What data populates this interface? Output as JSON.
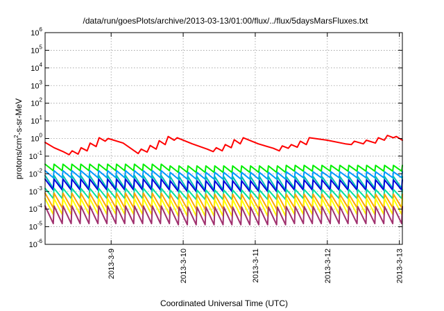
{
  "chart_data": {
    "type": "line",
    "title": "/data/run/goesPlots/archive/2013-03-13/01:00/flux/../flux/5daysMarsFluxes.txt",
    "xlabel": "Coordinated Universal Time (UTC)",
    "ylabel": {
      "base": "protons/cm",
      "sup": "2",
      "rest": "-s-sr-MeV"
    },
    "xlim": [
      "2013-03-08T02:00",
      "2013-03-13T01:00"
    ],
    "x_ticks": [
      "2013-3-9",
      "2013-3-10",
      "2013-3-11",
      "2013-3-12",
      "2013-3-13"
    ],
    "x_tick_dates": [
      "2013-03-09",
      "2013-03-10",
      "2013-03-11",
      "2013-03-12",
      "2013-03-13"
    ],
    "yscale": "log",
    "ylim": [
      1e-06,
      1000000.0
    ],
    "y_ticks": [
      {
        "base": "10",
        "exp": "-6"
      },
      {
        "base": "10",
        "exp": "-5"
      },
      {
        "base": "10",
        "exp": "-4"
      },
      {
        "base": "10",
        "exp": "-3"
      },
      {
        "base": "10",
        "exp": "-2"
      },
      {
        "base": "10",
        "exp": "-1"
      },
      {
        "base": "10",
        "exp": "0"
      },
      {
        "base": "10",
        "exp": "1"
      },
      {
        "base": "10",
        "exp": "2"
      },
      {
        "base": "10",
        "exp": "3"
      },
      {
        "base": "10",
        "exp": "4"
      },
      {
        "base": "10",
        "exp": "5"
      },
      {
        "base": "10",
        "exp": "6"
      }
    ],
    "grid": true,
    "series": [
      {
        "color": "#ff0000",
        "x": [
          "2013-03-08T02:00",
          "2013-03-08T05:00",
          "2013-03-08T08:00",
          "2013-03-08T10:00",
          "2013-03-08T11:00",
          "2013-03-08T13:00",
          "2013-03-08T14:00",
          "2013-03-08T16:00",
          "2013-03-08T17:00",
          "2013-03-08T19:00",
          "2013-03-08T20:00",
          "2013-03-08T22:00",
          "2013-03-08T23:00",
          "2013-03-09T04:00",
          "2013-03-09T09:00",
          "2013-03-09T10:00",
          "2013-03-09T12:00",
          "2013-03-09T13:00",
          "2013-03-09T15:00",
          "2013-03-09T16:00",
          "2013-03-09T18:00",
          "2013-03-09T19:00",
          "2013-03-09T21:00",
          "2013-03-09T22:00",
          "2013-03-10T03:00",
          "2013-03-10T08:00",
          "2013-03-10T10:00",
          "2013-03-10T11:00",
          "2013-03-10T13:00",
          "2013-03-10T14:00",
          "2013-03-10T16:00",
          "2013-03-10T17:00",
          "2013-03-10T19:00",
          "2013-03-10T20:00",
          "2013-03-11T01:00",
          "2013-03-11T06:00",
          "2013-03-11T08:00",
          "2013-03-11T09:00",
          "2013-03-11T11:00",
          "2013-03-11T12:00",
          "2013-03-11T14:00",
          "2013-03-11T15:00",
          "2013-03-11T17:00",
          "2013-03-11T18:00",
          "2013-03-12T00:00",
          "2013-03-12T06:00",
          "2013-03-12T08:00",
          "2013-03-12T09:00",
          "2013-03-12T12:00",
          "2013-03-12T13:00",
          "2013-03-12T16:00",
          "2013-03-12T17:00",
          "2013-03-12T19:00",
          "2013-03-12T20:00",
          "2013-03-12T22:00",
          "2013-03-12T23:00",
          "2013-03-13T01:00"
        ],
        "y": [
          0.6,
          0.3,
          0.18,
          0.12,
          0.2,
          0.13,
          0.3,
          0.2,
          0.55,
          0.35,
          1.1,
          0.7,
          1.0,
          0.55,
          0.14,
          0.25,
          0.17,
          0.4,
          0.25,
          0.75,
          0.45,
          1.3,
          0.8,
          1.1,
          0.5,
          0.25,
          0.18,
          0.3,
          0.2,
          0.45,
          0.3,
          0.85,
          0.5,
          1.1,
          0.5,
          0.28,
          0.2,
          0.38,
          0.28,
          0.45,
          0.32,
          0.7,
          0.45,
          1.1,
          0.8,
          0.5,
          0.45,
          0.7,
          0.5,
          0.8,
          0.55,
          1.1,
          0.8,
          1.5,
          1.1,
          1.3,
          0.8
        ]
      },
      {
        "color": "#00ee00",
        "x_start": "2013-03-08T02:00",
        "x_end": "2013-03-13T01:00",
        "cycles": 40,
        "peak": [
          0.035,
          0.028,
          0.03
        ],
        "trough": [
          0.015,
          0.012,
          0.014
        ]
      },
      {
        "color": "#0099ff",
        "x_start": "2013-03-08T02:00",
        "x_end": "2013-03-13T01:00",
        "cycles": 40,
        "peak": [
          0.015,
          0.012,
          0.013
        ],
        "trough": [
          0.006,
          0.005,
          0.006
        ]
      },
      {
        "color": "#00bbbb",
        "x_start": "2013-03-08T02:00",
        "x_end": "2013-03-13T01:00",
        "cycles": 40,
        "peak": [
          0.008,
          0.007,
          0.007
        ],
        "trough": [
          0.0015,
          0.0012,
          0.0015
        ]
      },
      {
        "color": "#0000dd",
        "x_start": "2013-03-08T02:00",
        "x_end": "2013-03-13T01:00",
        "cycles": 40,
        "peak": [
          0.005,
          0.004,
          0.0045
        ],
        "trough": [
          0.0012,
          0.001,
          0.0012
        ]
      },
      {
        "color": "#00e0a0",
        "x_start": "2013-03-08T02:00",
        "x_end": "2013-03-13T01:00",
        "cycles": 40,
        "peak": [
          0.0015,
          0.0012,
          0.0013
        ],
        "trough": [
          0.0004,
          0.00035,
          0.0004
        ]
      },
      {
        "color": "#ffa500",
        "x_start": "2013-03-08T02:00",
        "x_end": "2013-03-13T01:00",
        "cycles": 40,
        "peak": [
          0.0008,
          0.0007,
          0.0007
        ],
        "trough": [
          0.00012,
          0.0001,
          0.00012
        ]
      },
      {
        "color": "#ffff00",
        "x_start": "2013-03-08T02:00",
        "x_end": "2013-03-13T01:00",
        "cycles": 40,
        "peak": [
          0.0004,
          0.00035,
          0.0004
        ],
        "trough": [
          5e-05,
          4e-05,
          5e-05
        ]
      },
      {
        "color": "#a0306e",
        "x_start": "2013-03-08T02:00",
        "x_end": "2013-03-13T01:00",
        "cycles": 40,
        "peak": [
          0.00015,
          0.00013,
          0.00014
        ],
        "trough": [
          1.5e-05,
          1.3e-05,
          1.5e-05
        ]
      }
    ]
  }
}
